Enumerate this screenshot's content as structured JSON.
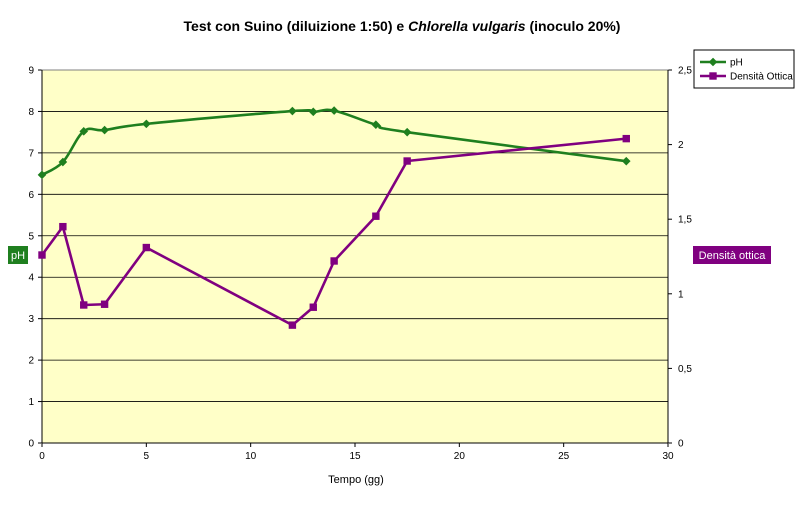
{
  "chart_data": {
    "type": "line",
    "title": {
      "part1": "Test con Suino (diluizione 1:50) e ",
      "italic": "Chlorella vulgaris",
      "part2": " (inoculo 20%)"
    },
    "xlabel": "Tempo (gg)",
    "ylabel": "pH",
    "y2label": "Densità ottica",
    "xlim": [
      0,
      30
    ],
    "ylim": [
      0,
      9
    ],
    "y2lim": [
      0,
      2.5
    ],
    "x_ticks": [
      "0",
      "5",
      "10",
      "15",
      "20",
      "25",
      "30"
    ],
    "y_ticks": [
      "0",
      "1",
      "2",
      "3",
      "4",
      "5",
      "6",
      "7",
      "8",
      "9"
    ],
    "y2_ticks": [
      "0",
      "0,5",
      "1",
      "1,5",
      "2",
      "2,5"
    ],
    "grid": "horizontal",
    "background_color": "#ffffc8",
    "legend_position": "top-right",
    "series": [
      {
        "name": "pH",
        "axis": "left",
        "color": "#1f7f1f",
        "marker": "diamond",
        "x": [
          0,
          1,
          2,
          3,
          5,
          12,
          13,
          14,
          16,
          17.5,
          28
        ],
        "y": [
          6.47,
          6.78,
          7.52,
          7.55,
          7.7,
          8.01,
          7.99,
          8.02,
          7.68,
          7.5,
          6.8
        ]
      },
      {
        "name": "Densità Ottica",
        "axis": "right",
        "color": "#800080",
        "marker": "square",
        "x": [
          0,
          1,
          2,
          3,
          5,
          12,
          13,
          14,
          16,
          17.5,
          28
        ],
        "y": [
          1.26,
          1.45,
          0.925,
          0.93,
          1.31,
          0.79,
          0.91,
          1.22,
          1.52,
          1.89,
          2.04
        ]
      }
    ]
  }
}
